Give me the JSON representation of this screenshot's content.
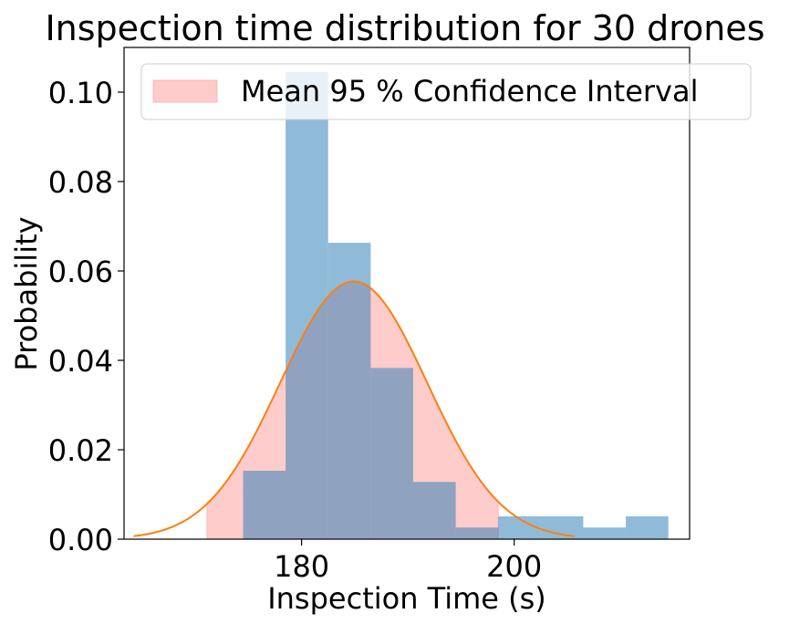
{
  "chart_data": {
    "type": "histogram",
    "title": "Inspection time distribution for 30 drones",
    "xlabel": "Inspection Time (s)",
    "ylabel": "Probability",
    "xlim": [
      163.3,
      216.5
    ],
    "ylim": [
      0,
      0.11
    ],
    "x_ticks": [
      {
        "value": 180,
        "label": "180"
      },
      {
        "value": 200,
        "label": "200"
      }
    ],
    "y_ticks": [
      {
        "value": 0.0,
        "label": "0.00"
      },
      {
        "value": 0.02,
        "label": "0.02"
      },
      {
        "value": 0.04,
        "label": "0.04"
      },
      {
        "value": 0.06,
        "label": "0.06"
      },
      {
        "value": 0.08,
        "label": "0.08"
      },
      {
        "value": 0.1,
        "label": "0.10"
      }
    ],
    "histogram": {
      "color": "#1f77b4",
      "alpha": 0.5,
      "bins": [
        {
          "x0": 174.5,
          "x1": 178.5,
          "value": 0.0153
        },
        {
          "x0": 178.5,
          "x1": 182.5,
          "value": 0.1045
        },
        {
          "x0": 182.5,
          "x1": 186.5,
          "value": 0.0663
        },
        {
          "x0": 186.5,
          "x1": 190.5,
          "value": 0.0383
        },
        {
          "x0": 190.5,
          "x1": 194.5,
          "value": 0.0128
        },
        {
          "x0": 194.5,
          "x1": 198.5,
          "value": 0.0026
        },
        {
          "x0": 198.5,
          "x1": 202.5,
          "value": 0.0051
        },
        {
          "x0": 202.5,
          "x1": 206.5,
          "value": 0.0051
        },
        {
          "x0": 206.5,
          "x1": 210.5,
          "value": 0.0026
        },
        {
          "x0": 210.5,
          "x1": 214.5,
          "value": 0.0051
        }
      ]
    },
    "normal_curve": {
      "color": "#ff7f0e",
      "mean": 184.9,
      "std": 6.92,
      "x_range": [
        164.2,
        205.7
      ]
    },
    "confidence_interval": {
      "color": "#ff9999",
      "alpha": 0.5,
      "x_range": [
        171.1,
        198.5
      ]
    },
    "legend": {
      "position": "top",
      "entries": [
        {
          "label": "Mean 95 % Confidence Interval",
          "color": "#ff9999"
        }
      ]
    },
    "grid": false
  }
}
